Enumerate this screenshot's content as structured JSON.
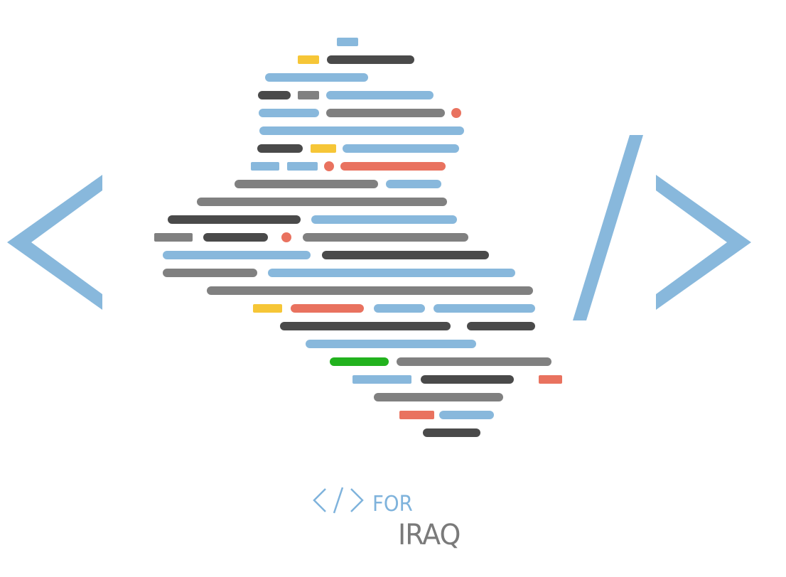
{
  "colors": {
    "light_blue": "#88b8dc",
    "dark_gray": "#4a4a4a",
    "mid_gray": "#808080",
    "yellow": "#f6c637",
    "coral": "#e9725f",
    "green": "#22b21e",
    "caption_blue": "#7fb3dc",
    "caption_gray": "#7a7a7a"
  },
  "icons": {
    "left_bracket": "less-than-icon",
    "slash": "slash-icon",
    "right_bracket": "greater-than-icon",
    "map": "iraq-map-code-lines-icon"
  },
  "caption": {
    "line1_word": "FOR",
    "line2_word": "IRAQ"
  }
}
